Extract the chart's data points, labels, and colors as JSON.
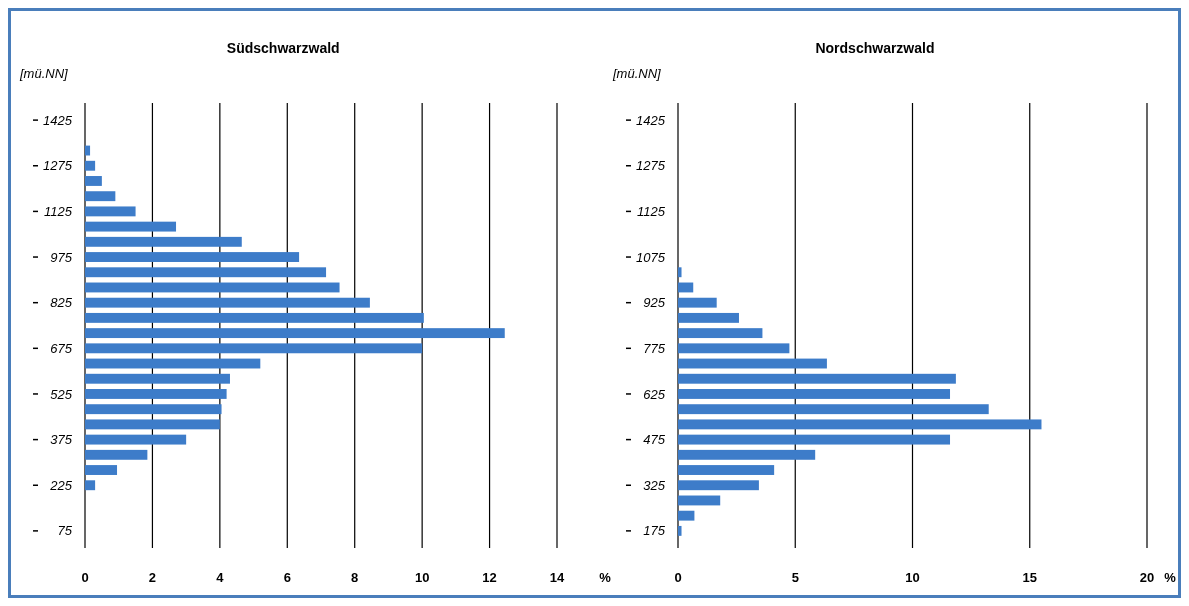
{
  "chart_data": [
    {
      "type": "bar",
      "orientation": "horizontal",
      "title": "Südschwarzwald",
      "ylabel": "[mü.NN]",
      "xlabel": "%",
      "color": "#3d7cc9",
      "grid": "x",
      "categories": [
        "1425",
        null,
        null,
        "1275",
        null,
        null,
        "1125",
        null,
        null,
        "975",
        null,
        null,
        "825",
        null,
        null,
        "675",
        null,
        null,
        "525",
        null,
        null,
        "375",
        null,
        null,
        "225",
        null,
        null,
        "75"
      ],
      "values": [
        null,
        null,
        0.15,
        0.3,
        0.5,
        0.9,
        1.5,
        2.7,
        4.65,
        6.35,
        7.15,
        7.55,
        8.45,
        10.05,
        12.45,
        10.0,
        5.2,
        4.3,
        4.2,
        4.05,
        4.0,
        3.0,
        1.85,
        0.95,
        0.3,
        null,
        null,
        null
      ],
      "xlim": [
        0,
        14
      ],
      "xticks": [
        0,
        2,
        4,
        6,
        8,
        10,
        12,
        14
      ]
    },
    {
      "type": "bar",
      "orientation": "horizontal",
      "title": "Nordschwarzwald",
      "ylabel": "[mü.NN]",
      "xlabel": "%",
      "color": "#3d7cc9",
      "grid": "x",
      "categories": [
        "1425",
        null,
        null,
        "1275",
        null,
        null,
        "1125",
        null,
        null,
        "1075",
        null,
        null,
        "925",
        null,
        null,
        "775",
        null,
        null,
        "625",
        null,
        null,
        "475",
        null,
        null,
        "325",
        null,
        null,
        "175"
      ],
      "values": [
        null,
        null,
        null,
        null,
        null,
        null,
        null,
        null,
        null,
        null,
        0.15,
        0.65,
        1.65,
        2.6,
        3.6,
        4.75,
        6.35,
        11.85,
        11.6,
        13.25,
        15.5,
        11.6,
        5.85,
        4.1,
        3.45,
        1.8,
        0.7,
        0.15
      ],
      "xlim": [
        0,
        20
      ],
      "xticks": [
        0,
        5,
        10,
        15,
        20
      ]
    }
  ]
}
